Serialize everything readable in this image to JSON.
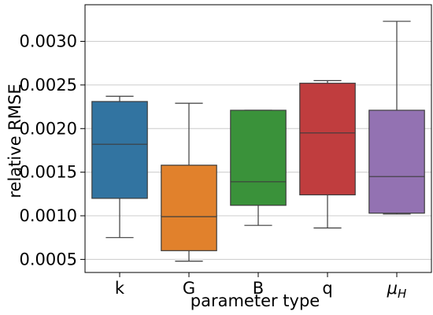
{
  "chart_data": {
    "type": "box",
    "xlabel": "parameter type",
    "ylabel": "relative RMSE",
    "ylim": [
      0.00035,
      0.00342
    ],
    "yticks": [
      "0.0005",
      "0.0010",
      "0.0015",
      "0.0020",
      "0.0025",
      "0.0030"
    ],
    "ytick_values": [
      0.0005,
      0.001,
      0.0015,
      0.002,
      0.0025,
      0.003
    ],
    "grid": "horizontal",
    "categories": [
      {
        "label": "k",
        "italic": false,
        "color": "#3274a1",
        "whisker_low": 0.00075,
        "q1": 0.0012,
        "median": 0.00182,
        "q3": 0.00231,
        "whisker_high": 0.00237
      },
      {
        "label": "G",
        "italic": false,
        "color": "#e1812c",
        "whisker_low": 0.00048,
        "q1": 0.0006,
        "median": 0.00099,
        "q3": 0.00158,
        "whisker_high": 0.00229
      },
      {
        "label": "B",
        "italic": false,
        "color": "#3a923a",
        "whisker_low": 0.00089,
        "q1": 0.00112,
        "median": 0.00139,
        "q3": 0.00221,
        "whisker_high": 0.00221
      },
      {
        "label": "q",
        "italic": false,
        "color": "#c03d3e",
        "whisker_low": 0.00086,
        "q1": 0.00124,
        "median": 0.00195,
        "q3": 0.00252,
        "whisker_high": 0.00255
      },
      {
        "label": "μH",
        "label_main": "μ",
        "label_sub": "H",
        "italic": true,
        "color": "#9372b2",
        "whisker_low": 0.00102,
        "q1": 0.00103,
        "median": 0.00145,
        "q3": 0.00221,
        "whisker_high": 0.00323
      }
    ]
  }
}
